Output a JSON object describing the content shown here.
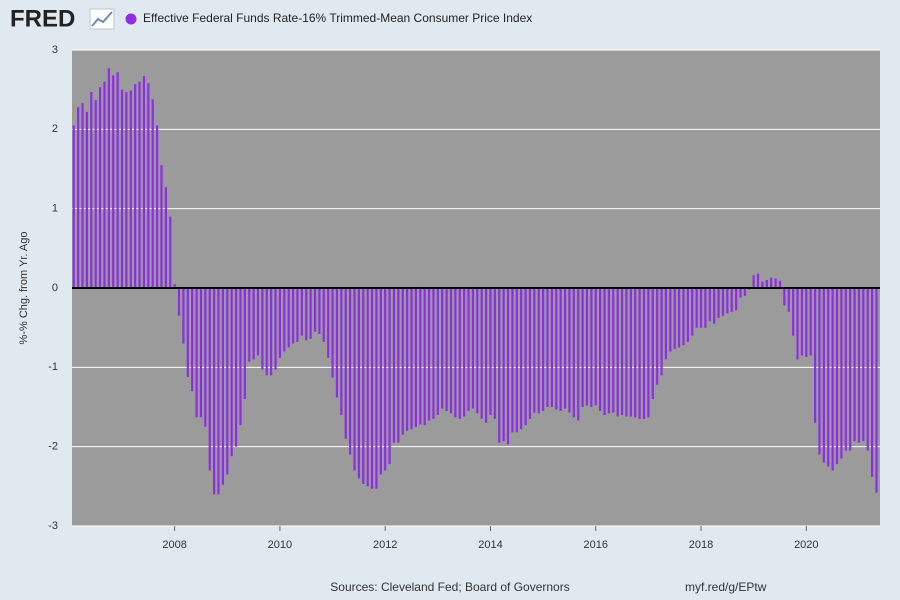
{
  "header": {
    "logo": "FRED"
  },
  "chart_data": {
    "type": "bar",
    "ylabel": "%-% Chg. from Yr. Ago",
    "x": [
      2006.083,
      2006.167,
      2006.25,
      2006.333,
      2006.417,
      2006.5,
      2006.583,
      2006.667,
      2006.75,
      2006.833,
      2006.917,
      2007.0,
      2007.083,
      2007.167,
      2007.25,
      2007.333,
      2007.417,
      2007.5,
      2007.583,
      2007.667,
      2007.75,
      2007.833,
      2007.917,
      2008.0,
      2008.083,
      2008.167,
      2008.25,
      2008.333,
      2008.417,
      2008.5,
      2008.583,
      2008.667,
      2008.75,
      2008.833,
      2008.917,
      2009.0,
      2009.083,
      2009.167,
      2009.25,
      2009.333,
      2009.417,
      2009.5,
      2009.583,
      2009.667,
      2009.75,
      2009.833,
      2009.917,
      2010.0,
      2010.083,
      2010.167,
      2010.25,
      2010.333,
      2010.417,
      2010.5,
      2010.583,
      2010.667,
      2010.75,
      2010.833,
      2010.917,
      2011.0,
      2011.083,
      2011.167,
      2011.25,
      2011.333,
      2011.417,
      2011.5,
      2011.583,
      2011.667,
      2011.75,
      2011.833,
      2011.917,
      2012.0,
      2012.083,
      2012.167,
      2012.25,
      2012.333,
      2012.417,
      2012.5,
      2012.583,
      2012.667,
      2012.75,
      2012.833,
      2012.917,
      2013.0,
      2013.083,
      2013.167,
      2013.25,
      2013.333,
      2013.417,
      2013.5,
      2013.583,
      2013.667,
      2013.75,
      2013.833,
      2013.917,
      2014.0,
      2014.083,
      2014.167,
      2014.25,
      2014.333,
      2014.417,
      2014.5,
      2014.583,
      2014.667,
      2014.75,
      2014.833,
      2014.917,
      2015.0,
      2015.083,
      2015.167,
      2015.25,
      2015.333,
      2015.417,
      2015.5,
      2015.583,
      2015.667,
      2015.75,
      2015.833,
      2015.917,
      2016.0,
      2016.083,
      2016.167,
      2016.25,
      2016.333,
      2016.417,
      2016.5,
      2016.583,
      2016.667,
      2016.75,
      2016.833,
      2016.917,
      2017.0,
      2017.083,
      2017.167,
      2017.25,
      2017.333,
      2017.417,
      2017.5,
      2017.583,
      2017.667,
      2017.75,
      2017.833,
      2017.917,
      2018.0,
      2018.083,
      2018.167,
      2018.25,
      2018.333,
      2018.417,
      2018.5,
      2018.583,
      2018.667,
      2018.75,
      2018.833,
      2018.917,
      2019.0,
      2019.083,
      2019.167,
      2019.25,
      2019.333,
      2019.417,
      2019.5,
      2019.583,
      2019.667,
      2019.75,
      2019.833,
      2019.917,
      2020.0,
      2020.083,
      2020.167,
      2020.25,
      2020.333,
      2020.417,
      2020.5,
      2020.583,
      2020.667,
      2020.75,
      2020.833,
      2020.917,
      2021.0,
      2021.083,
      2021.167,
      2021.25,
      2021.333
    ],
    "series": [
      {
        "name": "Effective Federal Funds Rate-16% Trimmed-Mean Consumer Price Index",
        "color": "#8e2ce6",
        "values": [
          2.05,
          2.28,
          2.33,
          2.22,
          2.47,
          2.37,
          2.53,
          2.6,
          2.77,
          2.68,
          2.72,
          2.5,
          2.47,
          2.49,
          2.57,
          2.6,
          2.67,
          2.58,
          2.38,
          2.05,
          1.55,
          1.27,
          0.9,
          0.05,
          -0.35,
          -0.7,
          -1.12,
          -1.3,
          -1.63,
          -1.63,
          -1.75,
          -2.3,
          -2.6,
          -2.6,
          -2.48,
          -2.35,
          -2.12,
          -2.0,
          -1.73,
          -1.4,
          -0.93,
          -0.9,
          -0.85,
          -1.03,
          -1.1,
          -1.1,
          -1.03,
          -0.88,
          -0.8,
          -0.75,
          -0.7,
          -0.68,
          -0.6,
          -0.66,
          -0.64,
          -0.55,
          -0.58,
          -0.68,
          -0.88,
          -1.13,
          -1.38,
          -1.6,
          -1.9,
          -2.1,
          -2.3,
          -2.4,
          -2.47,
          -2.5,
          -2.53,
          -2.53,
          -2.35,
          -2.3,
          -2.22,
          -1.95,
          -1.95,
          -1.85,
          -1.8,
          -1.78,
          -1.75,
          -1.72,
          -1.73,
          -1.67,
          -1.65,
          -1.6,
          -1.52,
          -1.55,
          -1.58,
          -1.63,
          -1.65,
          -1.62,
          -1.55,
          -1.52,
          -1.58,
          -1.65,
          -1.7,
          -1.6,
          -1.65,
          -1.95,
          -1.93,
          -1.97,
          -1.82,
          -1.82,
          -1.78,
          -1.73,
          -1.65,
          -1.57,
          -1.58,
          -1.55,
          -1.5,
          -1.5,
          -1.53,
          -1.55,
          -1.52,
          -1.57,
          -1.63,
          -1.67,
          -1.5,
          -1.48,
          -1.5,
          -1.48,
          -1.55,
          -1.6,
          -1.58,
          -1.57,
          -1.62,
          -1.6,
          -1.62,
          -1.62,
          -1.63,
          -1.65,
          -1.65,
          -1.63,
          -1.4,
          -1.22,
          -1.1,
          -0.9,
          -0.8,
          -0.77,
          -0.75,
          -0.72,
          -0.68,
          -0.6,
          -0.5,
          -0.5,
          -0.5,
          -0.42,
          -0.45,
          -0.38,
          -0.35,
          -0.32,
          -0.3,
          -0.28,
          -0.12,
          -0.1,
          -0.02,
          0.16,
          0.18,
          0.08,
          0.1,
          0.13,
          0.12,
          0.09,
          -0.22,
          -0.3,
          -0.6,
          -0.9,
          -0.85,
          -0.87,
          -0.85,
          -1.7,
          -2.1,
          -2.2,
          -2.25,
          -2.3,
          -2.22,
          -2.15,
          -2.05,
          -2.05,
          -1.93,
          -1.95,
          -1.93,
          -2.05,
          -2.38,
          -2.58
        ]
      }
    ],
    "xlim": [
      2006.05,
      2021.4
    ],
    "xticks": [
      2008,
      2010,
      2012,
      2014,
      2016,
      2018,
      2020
    ],
    "ylim": [
      -3,
      3
    ],
    "yticks": [
      -3,
      -2,
      -1,
      0,
      1,
      2,
      3
    ],
    "grid": true,
    "plot_background": "#9b9b9b"
  },
  "footer": {
    "sources": "Sources: Cleveland Fed; Board of Governors",
    "url": "myf.red/g/EPtw"
  }
}
